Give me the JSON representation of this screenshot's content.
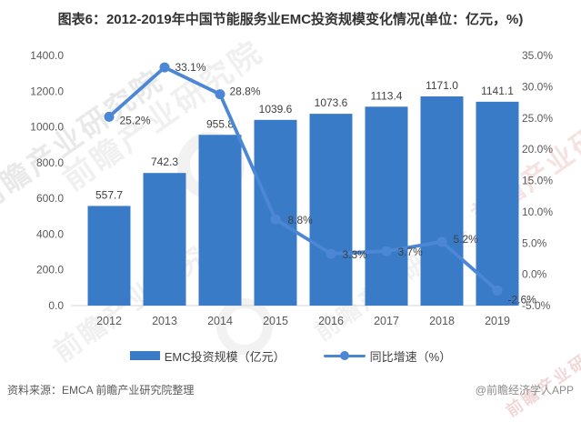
{
  "title": "图表6：2012-2019年中国节能服务业EMC投资规模变化情况(单位：亿元，%)",
  "chart_data": {
    "type": "bar+line",
    "categories": [
      "2012",
      "2013",
      "2014",
      "2015",
      "2016",
      "2017",
      "2018",
      "2019"
    ],
    "series": [
      {
        "name": "EMC投资规模（亿元）",
        "type": "bar",
        "axis": "left",
        "values": [
          557.7,
          742.3,
          955.8,
          1039.6,
          1073.6,
          1113.4,
          1171.0,
          1141.1
        ],
        "labels": [
          "557.7",
          "742.3",
          "955.8",
          "1039.6",
          "1073.6",
          "1113.4",
          "1171.0",
          "1141.1"
        ]
      },
      {
        "name": "同比增速（%）",
        "type": "line",
        "axis": "right",
        "values": [
          25.2,
          33.1,
          28.8,
          8.8,
          3.3,
          3.7,
          5.2,
          -2.6
        ],
        "labels": [
          "25.2%",
          "33.1%",
          "28.8%",
          "8.8%",
          "3.3%",
          "3.7%",
          "5.2%",
          "-2.6%"
        ],
        "label_offsets": [
          [
            10,
            4
          ],
          [
            10,
            0
          ],
          [
            9,
            -3
          ],
          [
            12,
            1
          ],
          [
            11,
            1
          ],
          [
            11,
            1
          ],
          [
            11,
            -3
          ],
          [
            10,
            10
          ]
        ]
      }
    ],
    "left_axis": {
      "min": 0,
      "max": 1400,
      "step": 200,
      "ticks": [
        "0.0",
        "200.0",
        "400.0",
        "600.0",
        "800.0",
        "1000.0",
        "1200.0",
        "1400.0"
      ]
    },
    "right_axis": {
      "min": -5,
      "max": 35,
      "step": 5,
      "ticks": [
        "-5.0%",
        "0.0%",
        "5.0%",
        "10.0%",
        "15.0%",
        "20.0%",
        "25.0%",
        "30.0%",
        "35.0%"
      ]
    },
    "grid": false,
    "legend_position": "bottom"
  },
  "legend": {
    "items": [
      {
        "label": "EMC投资规模（亿元）",
        "swatch": "bar"
      },
      {
        "label": "同比增速（%）",
        "swatch": "line"
      }
    ]
  },
  "footer": {
    "source": "资料来源：EMCA 前瞻产业研究院整理",
    "credit": "@前瞻经济学人APP"
  },
  "watermark": {
    "brand": "前瞻产业研究院"
  },
  "colors": {
    "bar": "#3A7BC8",
    "line": "#4C87D6",
    "axis_text": "#595959",
    "data_label": "#404040",
    "baseline": "#D5D5D5",
    "title": "#333333"
  }
}
